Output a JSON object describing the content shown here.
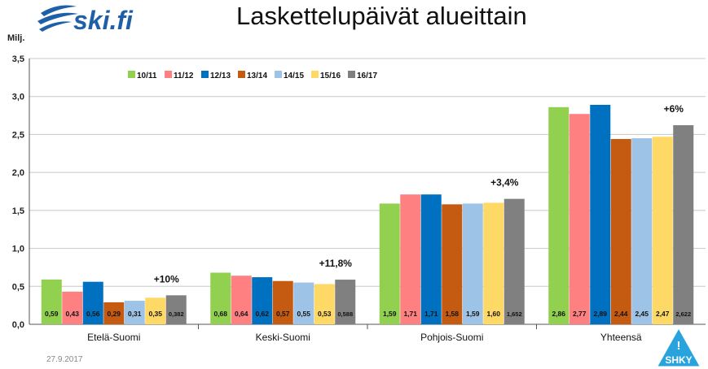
{
  "header": {
    "logo_text": "ski.fi",
    "title": "Laskettelupäivät alueittain"
  },
  "footer": {
    "date": "27.9.2017",
    "badge_text": "SHKY",
    "badge_mark": "!"
  },
  "chart_data": {
    "type": "bar",
    "title": "Laskettelupäivät alueittain",
    "ylabel": "Milj.",
    "xlabel": "",
    "ylim": [
      0,
      3.5
    ],
    "yticks": [
      "0,0",
      "0,5",
      "1,0",
      "1,5",
      "2,0",
      "2,5",
      "3,0",
      "3,5"
    ],
    "grid": true,
    "legend_position": "top-left",
    "categories": [
      "Etelä-Suomi",
      "Keski-Suomi",
      "Pohjois-Suomi",
      "Yhteensä"
    ],
    "series": [
      {
        "name": "10/11",
        "color": "#92d050",
        "values": [
          0.59,
          0.68,
          1.59,
          2.86
        ],
        "labels": [
          "0,59",
          "0,68",
          "1,59",
          "2,86"
        ]
      },
      {
        "name": "11/12",
        "color": "#ff8080",
        "values": [
          0.43,
          0.64,
          1.71,
          2.77
        ],
        "labels": [
          "0,43",
          "0,64",
          "1,71",
          "2,77"
        ]
      },
      {
        "name": "12/13",
        "color": "#0070c0",
        "values": [
          0.56,
          0.62,
          1.71,
          2.89
        ],
        "labels": [
          "0,56",
          "0,62",
          "1,71",
          "2,89"
        ]
      },
      {
        "name": "13/14",
        "color": "#c55a11",
        "values": [
          0.29,
          0.57,
          1.58,
          2.44
        ],
        "labels": [
          "0,29",
          "0,57",
          "1,58",
          "2,44"
        ]
      },
      {
        "name": "14/15",
        "color": "#9dc3e6",
        "values": [
          0.31,
          0.55,
          1.59,
          2.45
        ],
        "labels": [
          "0,31",
          "0,55",
          "1,59",
          "2,45"
        ]
      },
      {
        "name": "15/16",
        "color": "#ffd966",
        "values": [
          0.35,
          0.53,
          1.6,
          2.47
        ],
        "labels": [
          "0,35",
          "0,53",
          "1,60",
          "2,47"
        ]
      },
      {
        "name": "16/17",
        "color": "#808080",
        "values": [
          0.382,
          0.588,
          1.652,
          2.622
        ],
        "labels": [
          "0,382",
          "0,588",
          "1,652",
          "2,622"
        ]
      }
    ],
    "annotations": [
      "+10%",
      "+11,8%",
      "+3,4%",
      "+6%"
    ]
  }
}
